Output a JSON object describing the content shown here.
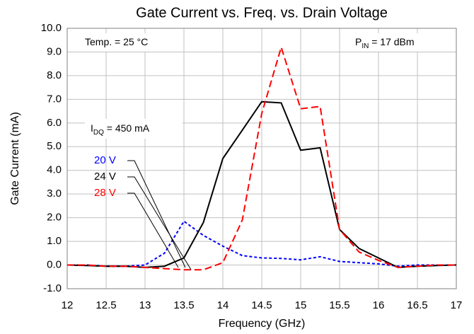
{
  "chart_data": {
    "type": "line",
    "title": "Gate Current vs. Freq. vs. Drain Voltage",
    "xlabel": "Frequency (GHz)",
    "ylabel": "Gate Current (mA)",
    "x": [
      12,
      12.25,
      12.5,
      12.75,
      13,
      13.25,
      13.5,
      13.75,
      14,
      14.25,
      14.5,
      14.75,
      15,
      15.25,
      15.5,
      15.75,
      16,
      16.25,
      16.5,
      16.75,
      17
    ],
    "series": [
      {
        "name": "20 V",
        "color": "#0000ff",
        "dash": true,
        "values": [
          0,
          0,
          -0.05,
          -0.05,
          0,
          0.5,
          1.85,
          1.25,
          0.8,
          0.4,
          0.3,
          0.28,
          0.22,
          0.35,
          0.15,
          0.1,
          0.05,
          -0.05,
          0,
          0,
          0
        ]
      },
      {
        "name": "24 V",
        "color": "#000000",
        "dash": false,
        "values": [
          0,
          -0.02,
          -0.05,
          -0.05,
          -0.1,
          -0.05,
          0.3,
          1.8,
          4.5,
          5.7,
          6.9,
          6.85,
          4.85,
          4.95,
          1.5,
          0.7,
          0.3,
          -0.1,
          -0.05,
          -0.02,
          0
        ]
      },
      {
        "name": "28 V",
        "color": "#ff0000",
        "dash": true,
        "values": [
          0,
          0,
          -0.05,
          -0.05,
          -0.1,
          -0.15,
          -0.2,
          -0.2,
          0.1,
          1.9,
          6.4,
          9.2,
          6.6,
          6.7,
          1.5,
          0.55,
          0.2,
          -0.1,
          -0.05,
          0,
          0
        ]
      }
    ],
    "xlim": [
      12,
      17
    ],
    "xticks": [
      12,
      12.5,
      13,
      13.5,
      14,
      14.5,
      15,
      15.5,
      16,
      16.5,
      17
    ],
    "ylim": [
      -1,
      10
    ],
    "yticks": [
      {
        "value": -1,
        "label": "-1.0"
      },
      {
        "value": 0,
        "label": "0.0"
      },
      {
        "value": 1,
        "label": "1.0"
      },
      {
        "value": 2,
        "label": "2.0"
      },
      {
        "value": 3,
        "label": "3.0"
      },
      {
        "value": 4,
        "label": "4.0"
      },
      {
        "value": 5,
        "label": "5.0"
      },
      {
        "value": 6,
        "label": "6.0"
      },
      {
        "value": 7,
        "label": "7.0"
      },
      {
        "value": 8,
        "label": "8.0"
      },
      {
        "value": 9,
        "label": "9.0"
      },
      {
        "value": 10,
        "label": "10.0"
      }
    ],
    "grid": true,
    "annotations": [
      {
        "text": "Temp. = 25 °C"
      },
      {
        "text": "P",
        "sub": "IN",
        "rest": " = 17 dBm"
      },
      {
        "text": "I",
        "sub": "DQ",
        "rest": " = 450 mA"
      }
    ]
  }
}
